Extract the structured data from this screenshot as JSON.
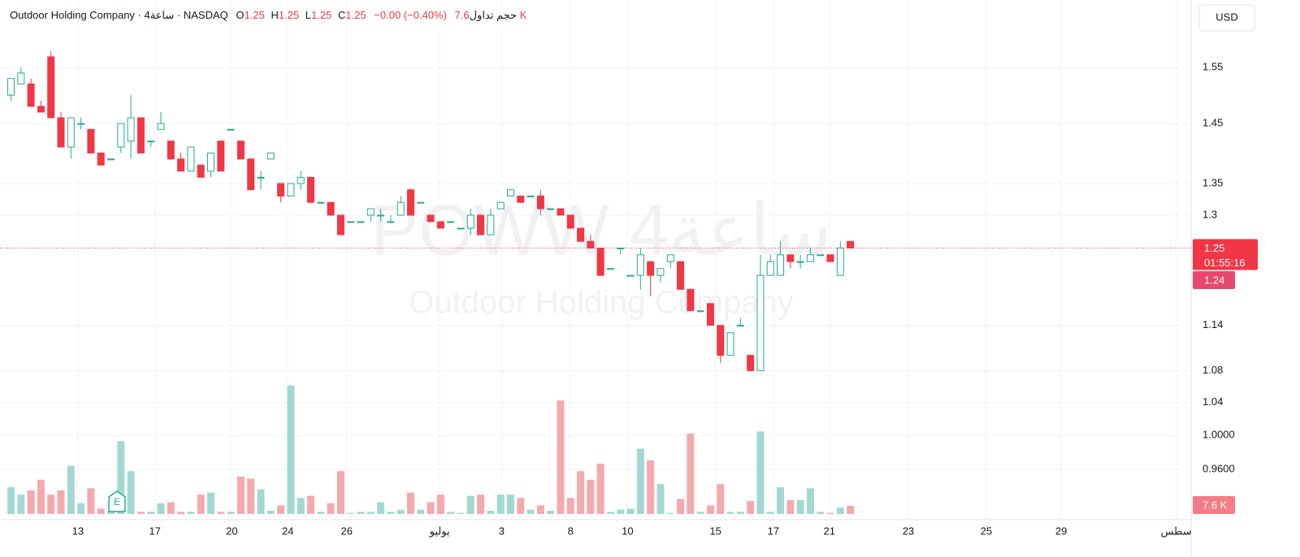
{
  "chart_data": {
    "type": "candlestick",
    "header": {
      "name": "Outdoor Holding Company · 4ساعة · NASDAQ",
      "o_label": "O",
      "open": 1.25,
      "h_label": "H",
      "high": 1.25,
      "l_label": "L",
      "low": 1.25,
      "c_label": "C",
      "close": 1.25,
      "change": "−0.00 (−0.40%)",
      "volume_label": "حجم تداول",
      "volume": "7.6 K"
    },
    "currency": "USD",
    "watermark": "POWW 4ساعة",
    "watermark_subtitle": "Outdoor Holding Company",
    "price_label": 1.25,
    "countdown": "01:55:16",
    "secondary_price_label": 1.24,
    "volume_label": "7.6 K",
    "event_marker": "E",
    "open": [
      1.5,
      1.52,
      1.52,
      1.48,
      1.57,
      1.46,
      1.41,
      1.45,
      1.44,
      1.4,
      1.39,
      1.41,
      1.42,
      1.46,
      1.42,
      1.44,
      1.42,
      1.39,
      1.37,
      1.38,
      1.37,
      1.42,
      1.44,
      1.42,
      1.39,
      1.36,
      1.39,
      1.35,
      1.33,
      1.35,
      1.36,
      1.32,
      1.32,
      1.3,
      1.29,
      1.29,
      1.3,
      1.3,
      1.29,
      1.3,
      1.34,
      1.32,
      1.3,
      1.29,
      1.29,
      1.28,
      1.28,
      1.3,
      1.27,
      1.31,
      1.33,
      1.33,
      1.33,
      1.33,
      1.31,
      1.31,
      1.3,
      1.28,
      1.26,
      1.25,
      1.22,
      1.25,
      1.21,
      1.21,
      1.23,
      1.21,
      1.23,
      1.23,
      1.19,
      1.16,
      1.17,
      1.14,
      1.1,
      1.14,
      1.1,
      1.08,
      1.21,
      1.21,
      1.24,
      1.23,
      1.23,
      1.24,
      1.24,
      1.21,
      1.26
    ],
    "high": [
      1.53,
      1.55,
      1.53,
      1.49,
      1.58,
      1.47,
      1.46,
      1.46,
      1.44,
      1.4,
      1.39,
      1.45,
      1.5,
      1.46,
      1.42,
      1.47,
      1.42,
      1.4,
      1.41,
      1.38,
      1.4,
      1.42,
      1.44,
      1.42,
      1.39,
      1.37,
      1.4,
      1.35,
      1.35,
      1.37,
      1.36,
      1.32,
      1.32,
      1.3,
      1.29,
      1.29,
      1.31,
      1.31,
      1.3,
      1.33,
      1.34,
      1.32,
      1.3,
      1.29,
      1.29,
      1.28,
      1.31,
      1.3,
      1.31,
      1.32,
      1.34,
      1.33,
      1.33,
      1.34,
      1.31,
      1.31,
      1.3,
      1.28,
      1.27,
      1.25,
      1.22,
      1.25,
      1.21,
      1.25,
      1.23,
      1.22,
      1.24,
      1.23,
      1.19,
      1.16,
      1.17,
      1.14,
      1.13,
      1.15,
      1.1,
      1.24,
      1.24,
      1.26,
      1.24,
      1.24,
      1.25,
      1.24,
      1.24,
      1.26,
      1.26
    ],
    "low": [
      1.49,
      1.52,
      1.48,
      1.47,
      1.46,
      1.41,
      1.39,
      1.44,
      1.4,
      1.38,
      1.39,
      1.4,
      1.39,
      1.4,
      1.41,
      1.44,
      1.39,
      1.37,
      1.37,
      1.36,
      1.36,
      1.37,
      1.44,
      1.39,
      1.34,
      1.34,
      1.39,
      1.32,
      1.33,
      1.34,
      1.32,
      1.32,
      1.3,
      1.27,
      1.29,
      1.29,
      1.29,
      1.29,
      1.29,
      1.3,
      1.3,
      1.32,
      1.29,
      1.28,
      1.29,
      1.28,
      1.27,
      1.27,
      1.27,
      1.31,
      1.33,
      1.32,
      1.33,
      1.3,
      1.31,
      1.3,
      1.28,
      1.26,
      1.25,
      1.21,
      1.22,
      1.24,
      1.21,
      1.19,
      1.18,
      1.2,
      1.22,
      1.19,
      1.16,
      1.16,
      1.14,
      1.09,
      1.1,
      1.14,
      1.08,
      1.08,
      1.21,
      1.21,
      1.22,
      1.22,
      1.23,
      1.24,
      1.23,
      1.21,
      1.25
    ],
    "close": [
      1.53,
      1.54,
      1.48,
      1.47,
      1.46,
      1.41,
      1.46,
      1.45,
      1.4,
      1.38,
      1.39,
      1.45,
      1.46,
      1.4,
      1.42,
      1.45,
      1.39,
      1.37,
      1.41,
      1.36,
      1.4,
      1.37,
      1.44,
      1.39,
      1.34,
      1.36,
      1.4,
      1.33,
      1.35,
      1.36,
      1.32,
      1.32,
      1.3,
      1.27,
      1.29,
      1.29,
      1.31,
      1.3,
      1.29,
      1.32,
      1.3,
      1.32,
      1.29,
      1.28,
      1.29,
      1.28,
      1.3,
      1.27,
      1.3,
      1.32,
      1.34,
      1.32,
      1.33,
      1.31,
      1.31,
      1.3,
      1.28,
      1.26,
      1.25,
      1.21,
      1.22,
      1.25,
      1.21,
      1.24,
      1.21,
      1.22,
      1.24,
      1.19,
      1.16,
      1.16,
      1.14,
      1.1,
      1.13,
      1.14,
      1.08,
      1.21,
      1.23,
      1.24,
      1.23,
      1.23,
      1.24,
      1.24,
      1.23,
      1.25,
      1.25
    ],
    "volume_values": [
      25,
      18,
      22,
      32,
      18,
      22,
      45,
      10,
      24,
      5,
      3,
      68,
      40,
      2,
      2,
      10,
      11,
      2,
      2,
      18,
      20,
      2,
      2,
      35,
      33,
      23,
      3,
      8,
      120,
      15,
      17,
      2,
      10,
      40,
      1,
      2,
      2,
      11,
      2,
      4,
      20,
      4,
      11,
      18,
      2,
      1,
      17,
      18,
      3,
      18,
      18,
      15,
      4,
      8,
      3,
      106,
      15,
      40,
      32,
      47,
      2,
      4,
      5,
      61,
      50,
      28,
      1,
      14,
      75,
      2,
      8,
      28,
      2,
      2,
      12,
      77,
      2,
      25,
      13,
      13,
      24,
      2,
      1,
      6,
      7.6
    ],
    "volume_lim": [
      0,
      480
    ],
    "up_color": "#22ab94",
    "down_color": "#f23645",
    "up_volume_color": "#a3d8d2",
    "down_volume_color": "#f4a9ad",
    "log_scale": true,
    "grid": true,
    "ylim": [
      0.9,
      1.68
    ],
    "yticks": [
      1.55,
      1.45,
      1.35,
      1.3,
      1.14,
      1.08,
      1.04,
      {
        "value": 1,
        "label": "1.0000"
      },
      {
        "value": 0.96,
        "label": "0.9600"
      }
    ],
    "xlim": [
      -1.1,
      118.1
    ],
    "xticks": [
      {
        "value": 6.7,
        "label": "13"
      },
      {
        "value": 14.4,
        "label": "17"
      },
      {
        "value": 22.1,
        "label": "20"
      },
      {
        "value": 27.7,
        "label": "24"
      },
      {
        "value": 33.6,
        "label": "26"
      },
      {
        "value": 42.9,
        "label": "يوليو"
      },
      {
        "value": 49.1,
        "label": "3"
      },
      {
        "value": 56,
        "label": "8"
      },
      {
        "value": 61.7,
        "label": "10"
      },
      {
        "value": 70.5,
        "label": "15"
      },
      {
        "value": 76.3,
        "label": "17"
      },
      {
        "value": 81.9,
        "label": "21"
      },
      {
        "value": 89.8,
        "label": "23"
      },
      {
        "value": 97.6,
        "label": "25"
      },
      {
        "value": 105.1,
        "label": "29"
      },
      {
        "value": 116.6,
        "label": "سطس"
      }
    ]
  }
}
